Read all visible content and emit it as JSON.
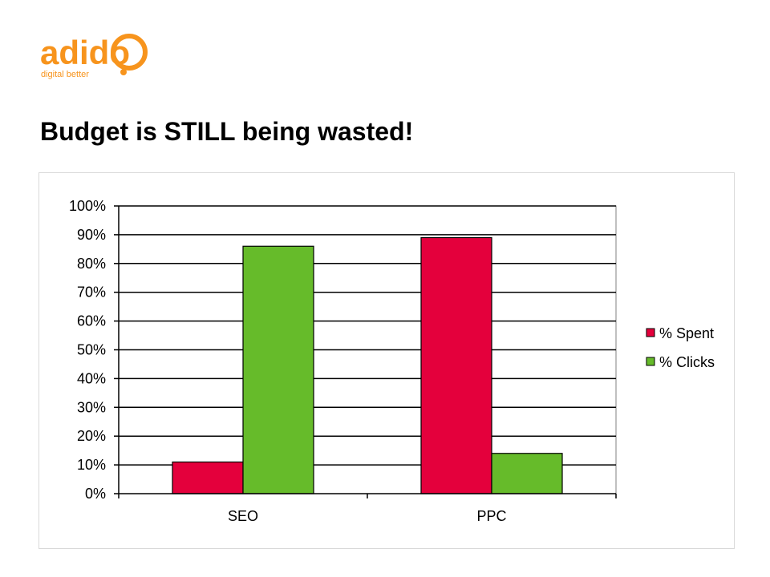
{
  "slide": {
    "title": "Budget is STILL being wasted!"
  },
  "logo": {
    "text": "adido",
    "tagline": "digital better",
    "colors": {
      "primary": "#f7941d",
      "secondary": "#ffcb05"
    }
  },
  "chart_data": {
    "type": "bar",
    "categories": [
      "SEO",
      "PPC"
    ],
    "series": [
      {
        "name": "% Spent",
        "values": [
          11,
          89
        ],
        "color": "#e4003c"
      },
      {
        "name": "% Clicks",
        "values": [
          86,
          14
        ],
        "color": "#66bb2a"
      }
    ],
    "ylim": [
      0,
      100
    ],
    "yticks": [
      "0%",
      "10%",
      "20%",
      "30%",
      "40%",
      "50%",
      "60%",
      "70%",
      "80%",
      "90%",
      "100%"
    ],
    "grid": true,
    "legend_position": "right",
    "title": "",
    "xlabel": "",
    "ylabel": ""
  }
}
